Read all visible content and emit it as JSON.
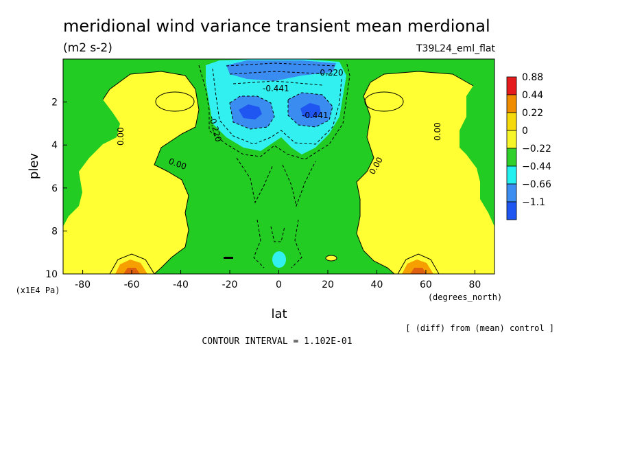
{
  "chart_data": {
    "type": "contour",
    "title": "meridional wind variance transient mean merdional",
    "units": "(m2 s-2)",
    "experiment": "T39L24_eml_flat",
    "xlabel": "lat",
    "xunits": "(degrees_north)",
    "ylabel": "plev",
    "yunits": "(x1E4 Pa)",
    "xlim": [
      -88,
      88
    ],
    "ylim": [
      10,
      0
    ],
    "x_ticks": [
      -80,
      -60,
      -40,
      -20,
      0,
      20,
      40,
      60,
      80
    ],
    "y_ticks": [
      2,
      4,
      6,
      8,
      10
    ],
    "colorbar": {
      "levels": [
        "0.88",
        "0.44",
        "0.22",
        "0",
        "−0.22",
        "−0.44",
        "−0.66",
        "−1.1"
      ],
      "colors": [
        "#e41a1c",
        "#f08c00",
        "#f5d90a",
        "#f5f52a",
        "#2fd02a",
        "#25f0f0",
        "#3c8ef0",
        "#1f55f0"
      ]
    },
    "fill_colors": {
      "positive_low": "#ffff33",
      "near_zero_negative": "#22cc22",
      "negative_mid": "#33f0f0",
      "negative_high": "#3a8cf0",
      "positive_high": "#f5a000",
      "positive_max": "#e06010"
    },
    "contour_labels": [
      "-0.220",
      "-0.441",
      "-0.220",
      "-0.441",
      "0.00",
      "0.00",
      "0.00",
      "0.00"
    ],
    "note": "[ (diff) from (mean) control ]",
    "contour_interval": "CONTOUR INTERVAL = 1.102E-01"
  }
}
